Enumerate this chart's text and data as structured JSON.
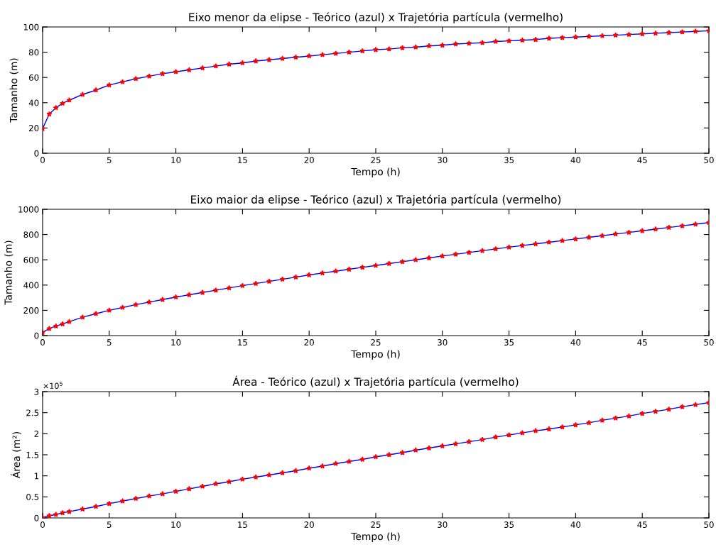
{
  "chart_data": [
    {
      "type": "line",
      "title": "Eixo menor da elipse - Teórico (azul) x Trajetória partícula (vermelho)",
      "xlabel": "Tempo (h)",
      "ylabel": "Tamanho (m)",
      "x": [
        0,
        0.5,
        1,
        1.5,
        2,
        3,
        4,
        5,
        6,
        7,
        8,
        9,
        10,
        11,
        12,
        13,
        14,
        15,
        16,
        17,
        18,
        19,
        20,
        21,
        22,
        23,
        24,
        25,
        26,
        27,
        28,
        29,
        30,
        31,
        32,
        33,
        34,
        35,
        36,
        37,
        38,
        39,
        40,
        41,
        42,
        43,
        44,
        45,
        46,
        47,
        48,
        49,
        50
      ],
      "series": [
        {
          "color": "#0000ff",
          "marker": "none",
          "values": [
            19.5,
            31,
            36,
            39.5,
            42,
            46.5,
            50,
            54,
            56.5,
            59,
            61,
            63,
            64.5,
            66,
            67.5,
            69,
            70.5,
            71.5,
            73,
            74,
            75,
            76,
            77,
            78,
            79,
            80,
            81,
            82,
            82.5,
            83.5,
            84,
            85,
            85.5,
            86.5,
            87,
            87.5,
            88.5,
            89,
            89.5,
            90,
            91,
            91.5,
            92,
            92.5,
            93,
            93.5,
            94,
            94.5,
            95,
            95.5,
            96,
            96.5,
            97
          ]
        },
        {
          "type": "scatter",
          "color": "#ff0000",
          "marker": "star",
          "values": [
            19.5,
            31,
            36,
            39.5,
            42,
            46.5,
            50,
            54,
            56.5,
            59,
            61,
            63,
            64.5,
            66,
            67.5,
            69,
            70.5,
            71.5,
            73,
            74,
            75,
            76,
            77,
            78,
            79,
            80,
            81,
            82,
            82.5,
            83.5,
            84,
            85,
            85.5,
            86.5,
            87,
            87.5,
            88.5,
            89,
            89.5,
            90,
            91,
            91.5,
            92,
            92.5,
            93,
            93.5,
            94,
            94.5,
            95,
            95.5,
            96,
            96.5,
            97
          ]
        }
      ],
      "xlim": [
        0,
        50
      ],
      "xticks": [
        0,
        5,
        10,
        15,
        20,
        25,
        30,
        35,
        40,
        45,
        50
      ],
      "ylim": [
        0,
        100
      ],
      "yticks": [
        0,
        20,
        40,
        60,
        80,
        100
      ],
      "grid": false
    },
    {
      "type": "line",
      "title": "Eixo maior da elipse - Teórico (azul) x Trajetória partícula (vermelho)",
      "xlabel": "Tempo (h)",
      "ylabel": "Tamanho (m)",
      "x": [
        0,
        0.5,
        1,
        1.5,
        2,
        3,
        4,
        5,
        6,
        7,
        8,
        9,
        10,
        11,
        12,
        13,
        14,
        15,
        16,
        17,
        18,
        19,
        20,
        21,
        22,
        23,
        24,
        25,
        26,
        27,
        28,
        29,
        30,
        31,
        32,
        33,
        34,
        35,
        36,
        37,
        38,
        39,
        40,
        41,
        42,
        43,
        44,
        45,
        46,
        47,
        48,
        49,
        50
      ],
      "series": [
        {
          "color": "#0000ff",
          "marker": "none",
          "values": [
            25,
            55,
            75,
            92,
            110,
            145,
            173,
            200,
            222,
            245,
            265,
            285,
            305,
            323,
            341,
            359,
            377,
            395,
            412,
            429,
            446,
            463,
            480,
            495,
            510,
            525,
            540,
            555,
            570,
            585,
            600,
            615,
            630,
            644,
            658,
            672,
            686,
            700,
            713,
            726,
            739,
            752,
            765,
            778,
            791,
            804,
            817,
            830,
            843,
            856,
            869,
            882,
            895
          ]
        },
        {
          "type": "scatter",
          "color": "#ff0000",
          "marker": "star",
          "values": [
            25,
            55,
            75,
            92,
            110,
            145,
            173,
            200,
            222,
            245,
            265,
            285,
            305,
            323,
            341,
            359,
            377,
            395,
            412,
            429,
            446,
            463,
            480,
            495,
            510,
            525,
            540,
            555,
            570,
            585,
            600,
            615,
            630,
            644,
            658,
            672,
            686,
            700,
            713,
            726,
            739,
            752,
            765,
            778,
            791,
            804,
            817,
            830,
            843,
            856,
            869,
            882,
            895
          ]
        }
      ],
      "xlim": [
        0,
        50
      ],
      "xticks": [
        0,
        5,
        10,
        15,
        20,
        25,
        30,
        35,
        40,
        45,
        50
      ],
      "ylim": [
        0,
        1000
      ],
      "yticks": [
        0,
        200,
        400,
        600,
        800,
        1000
      ],
      "grid": false
    },
    {
      "type": "line",
      "title": "Área - Teórico (azul) x Trajetória partícula (vermelho)",
      "xlabel": "Tempo (h)",
      "ylabel": "Área (m²)",
      "annotations": [
        "×10$^{5}$"
      ],
      "x": [
        0,
        0.5,
        1,
        1.5,
        2,
        3,
        4,
        5,
        6,
        7,
        8,
        9,
        10,
        11,
        12,
        13,
        14,
        15,
        16,
        17,
        18,
        19,
        20,
        21,
        22,
        23,
        24,
        25,
        26,
        27,
        28,
        29,
        30,
        31,
        32,
        33,
        34,
        35,
        36,
        37,
        38,
        39,
        40,
        41,
        42,
        43,
        44,
        45,
        46,
        47,
        48,
        49,
        50
      ],
      "series": [
        {
          "color": "#0000ff",
          "marker": "none",
          "values": [
            0.01,
            0.05,
            0.08,
            0.12,
            0.15,
            0.21,
            0.27,
            0.34,
            0.4,
            0.46,
            0.52,
            0.57,
            0.63,
            0.69,
            0.75,
            0.81,
            0.86,
            0.92,
            0.97,
            1.02,
            1.07,
            1.12,
            1.18,
            1.23,
            1.29,
            1.34,
            1.39,
            1.45,
            1.5,
            1.55,
            1.61,
            1.66,
            1.71,
            1.76,
            1.81,
            1.86,
            1.92,
            1.97,
            2.02,
            2.07,
            2.11,
            2.16,
            2.21,
            2.26,
            2.32,
            2.37,
            2.42,
            2.48,
            2.53,
            2.58,
            2.64,
            2.69,
            2.74
          ]
        },
        {
          "type": "scatter",
          "color": "#ff0000",
          "marker": "star",
          "values": [
            0.01,
            0.05,
            0.08,
            0.12,
            0.15,
            0.21,
            0.27,
            0.34,
            0.4,
            0.46,
            0.52,
            0.57,
            0.63,
            0.69,
            0.75,
            0.81,
            0.86,
            0.92,
            0.97,
            1.02,
            1.07,
            1.12,
            1.18,
            1.23,
            1.29,
            1.34,
            1.39,
            1.45,
            1.5,
            1.55,
            1.61,
            1.66,
            1.71,
            1.76,
            1.81,
            1.86,
            1.92,
            1.97,
            2.02,
            2.07,
            2.11,
            2.16,
            2.21,
            2.26,
            2.32,
            2.37,
            2.42,
            2.48,
            2.53,
            2.58,
            2.64,
            2.69,
            2.74
          ]
        }
      ],
      "xlim": [
        0,
        50
      ],
      "xticks": [
        0,
        5,
        10,
        15,
        20,
        25,
        30,
        35,
        40,
        45,
        50
      ],
      "ylim": [
        0,
        3
      ],
      "yticks": [
        0,
        0.5,
        1,
        1.5,
        2,
        2.5,
        3
      ],
      "grid": false
    }
  ]
}
